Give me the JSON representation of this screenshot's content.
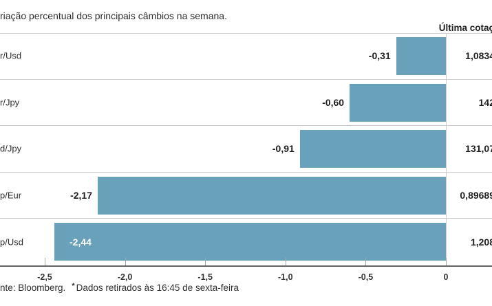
{
  "title": "riação percentual dos principais câmbios na semana.",
  "quote_column": {
    "header": "Última cotaç"
  },
  "footer": {
    "source": "nte: Bloomberg.",
    "asterisk": "*",
    "note": "Dados retirados às 16:45 de sexta-feira"
  },
  "chart_data": {
    "type": "bar",
    "orientation": "horizontal",
    "title": "riação percentual dos principais câmbios na semana.",
    "categories": [
      "r/Usd",
      "r/Jpy",
      "d/Jpy",
      "p/Eur",
      "p/Usd"
    ],
    "values": [
      -0.31,
      -0.6,
      -0.91,
      -2.17,
      -2.44
    ],
    "value_labels": [
      "-0,31",
      "-0,60",
      "-0,91",
      "-2,17",
      "-2,44"
    ],
    "last_quotes": [
      "1,0834",
      "142",
      "131,07",
      "0,89689",
      "1,208"
    ],
    "x_ticks": [
      -2.5,
      -2.0,
      -1.5,
      -1.0,
      -0.5,
      0
    ],
    "x_tick_labels": [
      "-2,5",
      "-2,0",
      "-1,5",
      "-1,0",
      "-0,5",
      "0"
    ],
    "xlim": [
      -2.5,
      0
    ],
    "grid": "none",
    "legend": "none",
    "bar_color": "#69a0ba",
    "separator_color": "#cccccc",
    "axis_line_color": "#646464",
    "inside_label_color": "#ffffff"
  }
}
